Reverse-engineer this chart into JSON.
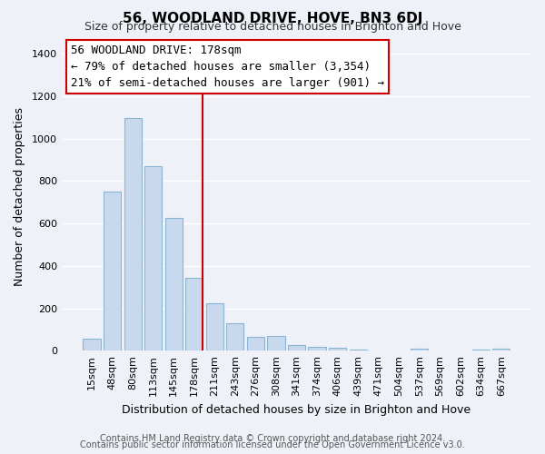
{
  "title": "56, WOODLAND DRIVE, HOVE, BN3 6DJ",
  "subtitle": "Size of property relative to detached houses in Brighton and Hove",
  "xlabel": "Distribution of detached houses by size in Brighton and Hove",
  "ylabel": "Number of detached properties",
  "footer_line1": "Contains HM Land Registry data © Crown copyright and database right 2024.",
  "footer_line2": "Contains public sector information licensed under the Open Government Licence v3.0.",
  "bar_labels": [
    "15sqm",
    "48sqm",
    "80sqm",
    "113sqm",
    "145sqm",
    "178sqm",
    "211sqm",
    "243sqm",
    "276sqm",
    "308sqm",
    "341sqm",
    "374sqm",
    "406sqm",
    "439sqm",
    "471sqm",
    "504sqm",
    "537sqm",
    "569sqm",
    "602sqm",
    "634sqm",
    "667sqm"
  ],
  "bar_values": [
    55,
    750,
    1095,
    870,
    625,
    345,
    225,
    130,
    65,
    70,
    25,
    20,
    15,
    5,
    0,
    0,
    10,
    0,
    0,
    5,
    10
  ],
  "bar_color": "#c8d9ee",
  "bar_edge_color": "#8ab4d4",
  "vline_index": 5,
  "vline_color": "#cc0000",
  "ylim": [
    0,
    1450
  ],
  "yticks": [
    0,
    200,
    400,
    600,
    800,
    1000,
    1200,
    1400
  ],
  "annotation_title": "56 WOODLAND DRIVE: 178sqm",
  "annotation_line1": "← 79% of detached houses are smaller (3,354)",
  "annotation_line2": "21% of semi-detached houses are larger (901) →",
  "annotation_box_facecolor": "#ffffff",
  "annotation_box_edgecolor": "#cc0000",
  "background_color": "#eef2f8",
  "grid_color": "#ffffff",
  "title_fontsize": 11,
  "subtitle_fontsize": 9,
  "ylabel_fontsize": 9,
  "xlabel_fontsize": 9,
  "tick_fontsize": 8,
  "annotation_fontsize": 9,
  "footer_fontsize": 7
}
